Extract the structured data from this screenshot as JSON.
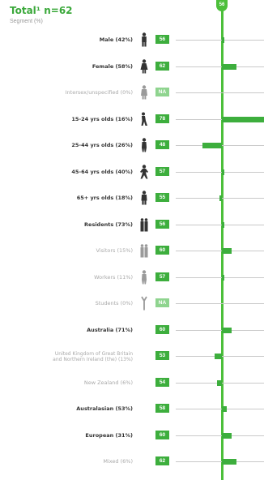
{
  "title": "Total¹ n=62",
  "subtitle": "Segment (%)",
  "colors": {
    "accent": "#3dae3d",
    "na": "#8fd48f",
    "track": "#c9c9c9"
  },
  "chart_data": {
    "type": "bar",
    "reference_value": 56,
    "reference_label": "56",
    "categories": [
      "Male (42%)",
      "Female (58%)",
      "Intersex/unspecified (0%)",
      "15-24 yrs olds (16%)",
      "25-44 yrs olds (26%)",
      "45-64 yrs olds (40%)",
      "65+ yrs olds (18%)",
      "Residents (73%)",
      "Visitors (15%)",
      "Workers (11%)",
      "Students (0%)",
      "Australia (71%)",
      "United Kingdom of Great Britain and Northern Ireland (the) (13%)",
      "New Zealand (6%)",
      "Australasian (53%)",
      "European (31%)",
      "Mixed (6%)"
    ],
    "scores": [
      "56",
      "62",
      "NA",
      "78",
      "48",
      "57",
      "55",
      "56",
      "60",
      "57",
      "NA",
      "60",
      "53",
      "54",
      "58",
      "60",
      "62"
    ],
    "values": [
      56,
      62,
      null,
      78,
      48,
      57,
      55,
      56,
      60,
      57,
      null,
      60,
      53,
      54,
      58,
      60,
      62
    ],
    "emphasis": [
      true,
      true,
      false,
      true,
      true,
      true,
      true,
      true,
      false,
      false,
      false,
      true,
      false,
      false,
      true,
      true,
      false
    ],
    "icons": [
      "male-figure-icon",
      "female-figure-icon",
      "intersex-figure-icon",
      "youth-figure-icon",
      "adult-figure-icon",
      "middle-aged-figure-icon",
      "senior-figure-icon",
      "resident-group-icon",
      "visitor-group-icon",
      "worker-figure-icon",
      "student-figure-icon",
      null,
      null,
      null,
      null,
      null,
      null
    ]
  }
}
